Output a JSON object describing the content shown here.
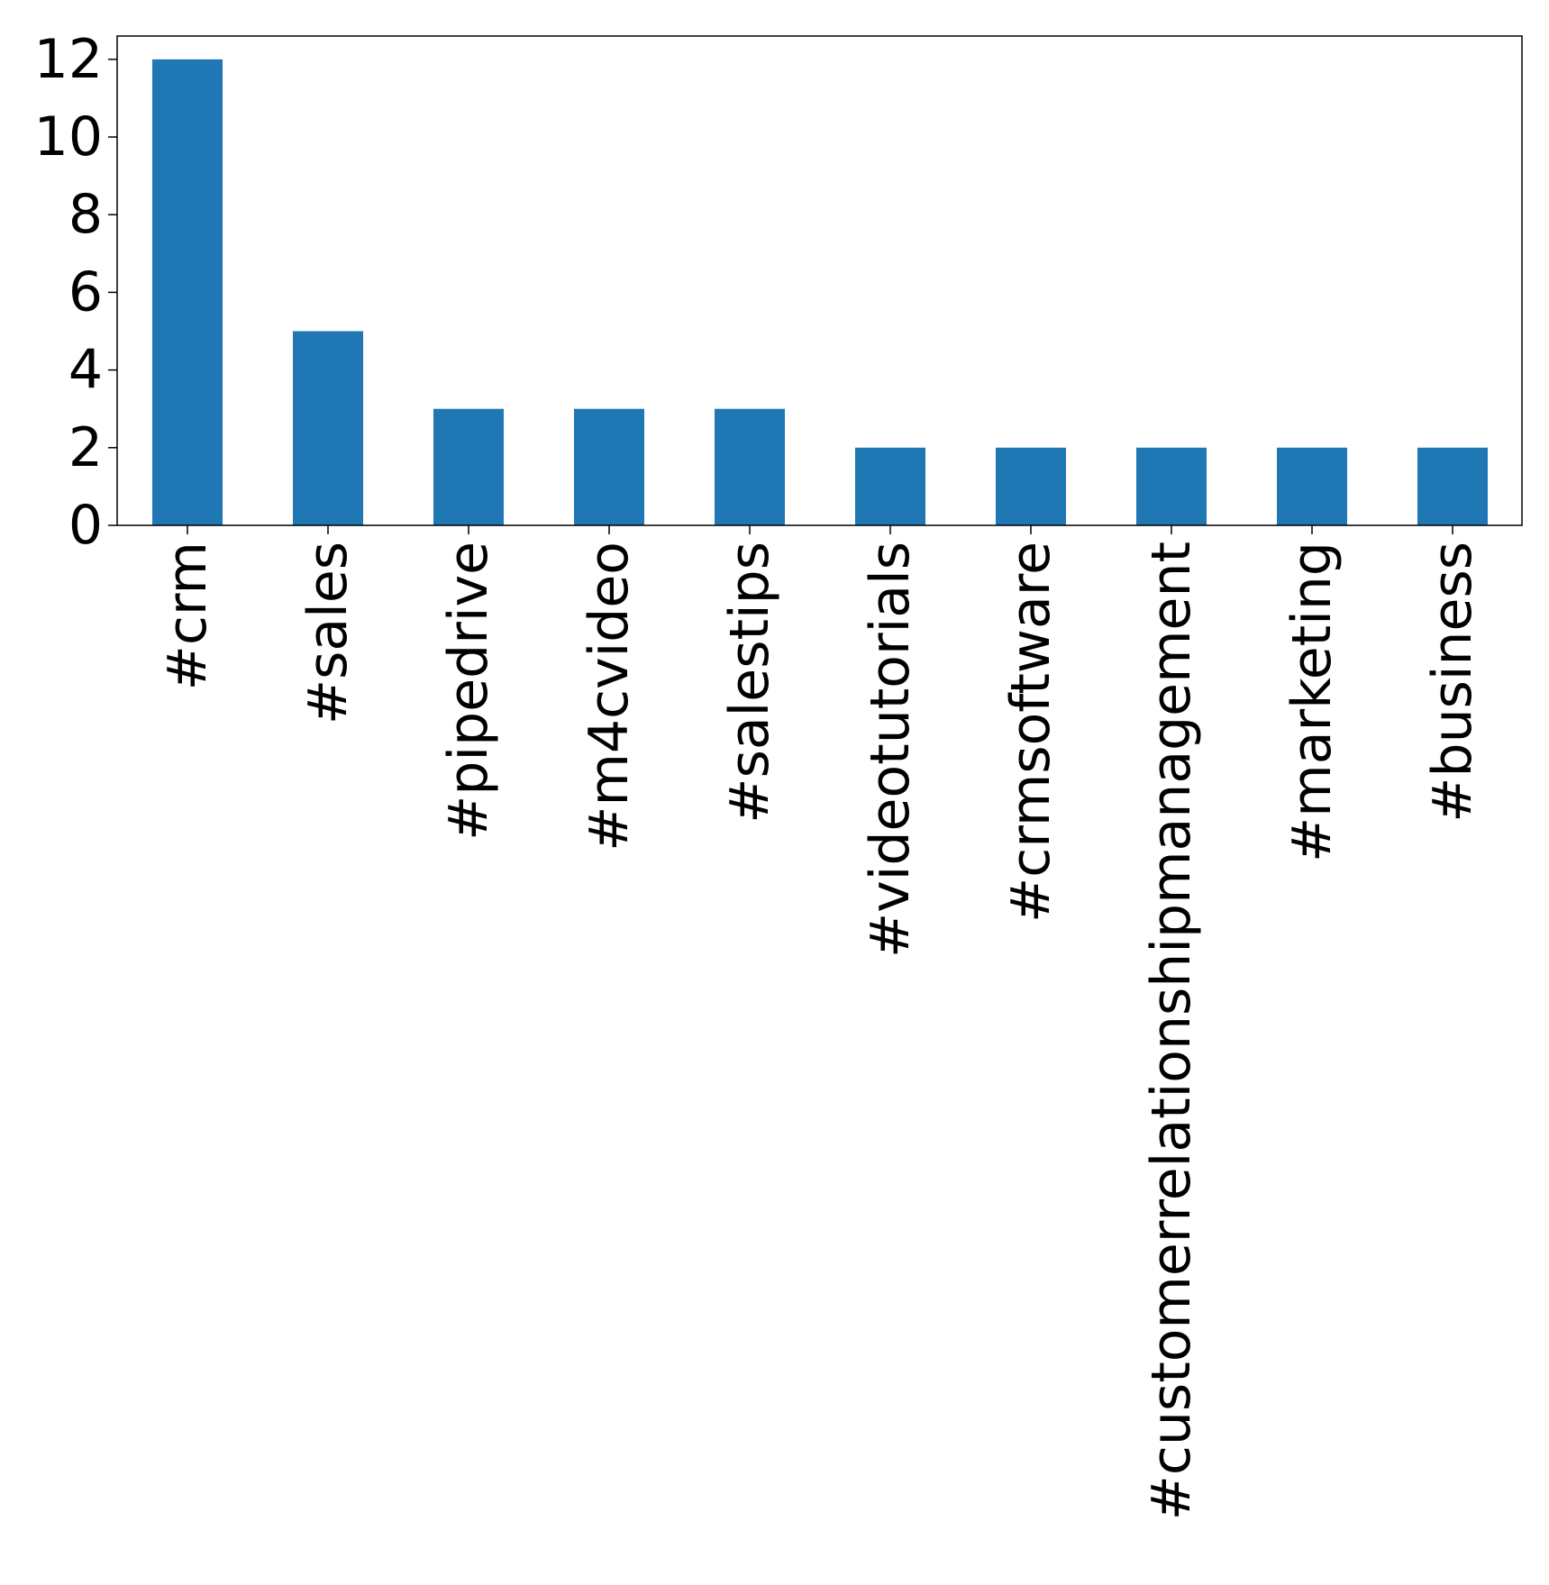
{
  "chart_data": {
    "type": "bar",
    "categories": [
      "#crm",
      "#sales",
      "#pipedrive",
      "#m4cvideo",
      "#salestips",
      "#videotutorials",
      "#crmsoftware",
      "#customerrelationshipmanagement",
      "#marketing",
      "#business"
    ],
    "values": [
      12,
      5,
      3,
      3,
      3,
      2,
      2,
      2,
      2,
      2
    ],
    "title": "",
    "xlabel": "",
    "ylabel": "",
    "ylim": [
      0,
      12.6
    ],
    "yticks": [
      0,
      2,
      4,
      6,
      8,
      10,
      12
    ],
    "grid": false,
    "bar_color": "#1f77b4",
    "axis_color": "#000000"
  }
}
